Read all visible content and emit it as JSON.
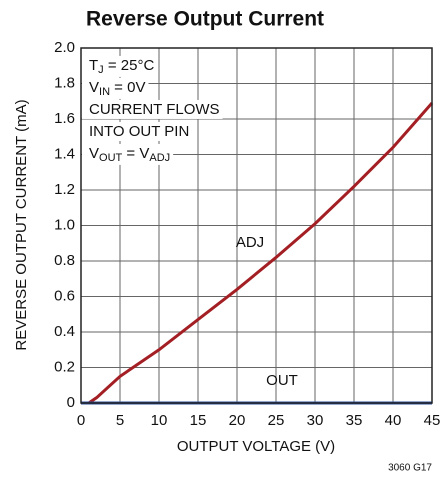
{
  "chart_data": {
    "type": "line",
    "title": "Reverse Output Current",
    "x_label": "OUTPUT VOLTAGE (V)",
    "y_label": "REVERSE OUTPUT CURRENT (mA)",
    "footnote": "3060 G17",
    "notes": [
      {
        "parts": [
          "T",
          "J",
          " = 25°C"
        ],
        "sub": [
          false,
          true,
          false
        ]
      },
      {
        "parts": [
          "V",
          "IN",
          " = 0V"
        ],
        "sub": [
          false,
          true,
          false
        ]
      },
      {
        "parts": [
          "CURRENT FLOWS"
        ],
        "sub": [
          false
        ]
      },
      {
        "parts": [
          "INTO OUT PIN"
        ],
        "sub": [
          false
        ]
      },
      {
        "parts": [
          "V",
          "OUT",
          " = V",
          "ADJ"
        ],
        "sub": [
          false,
          true,
          false,
          true
        ]
      }
    ],
    "x": [
      0,
      1,
      2,
      5,
      10,
      15,
      20,
      25,
      30,
      35,
      40,
      45
    ],
    "series": [
      {
        "name": "ADJ",
        "color": "#a31f24",
        "values": [
          0,
          0,
          0.03,
          0.15,
          0.3,
          0.47,
          0.64,
          0.82,
          1.01,
          1.22,
          1.44,
          1.69
        ]
      },
      {
        "name": "OUT",
        "color": "#2c4f9e",
        "values": [
          0,
          0,
          0,
          0,
          0,
          0,
          0,
          0,
          0,
          0,
          0,
          0
        ]
      }
    ],
    "xlim": [
      0,
      45
    ],
    "xticks": [
      0,
      5,
      10,
      15,
      20,
      25,
      30,
      35,
      40,
      45
    ],
    "ylim": [
      0,
      2
    ],
    "yticks": [
      0,
      0.2,
      0.4,
      0.6,
      0.8,
      {
        "value": 1,
        "label": "1.0"
      },
      1.2,
      1.4,
      1.6,
      1.8,
      {
        "value": 2,
        "label": "2.0"
      }
    ],
    "grid": true
  }
}
